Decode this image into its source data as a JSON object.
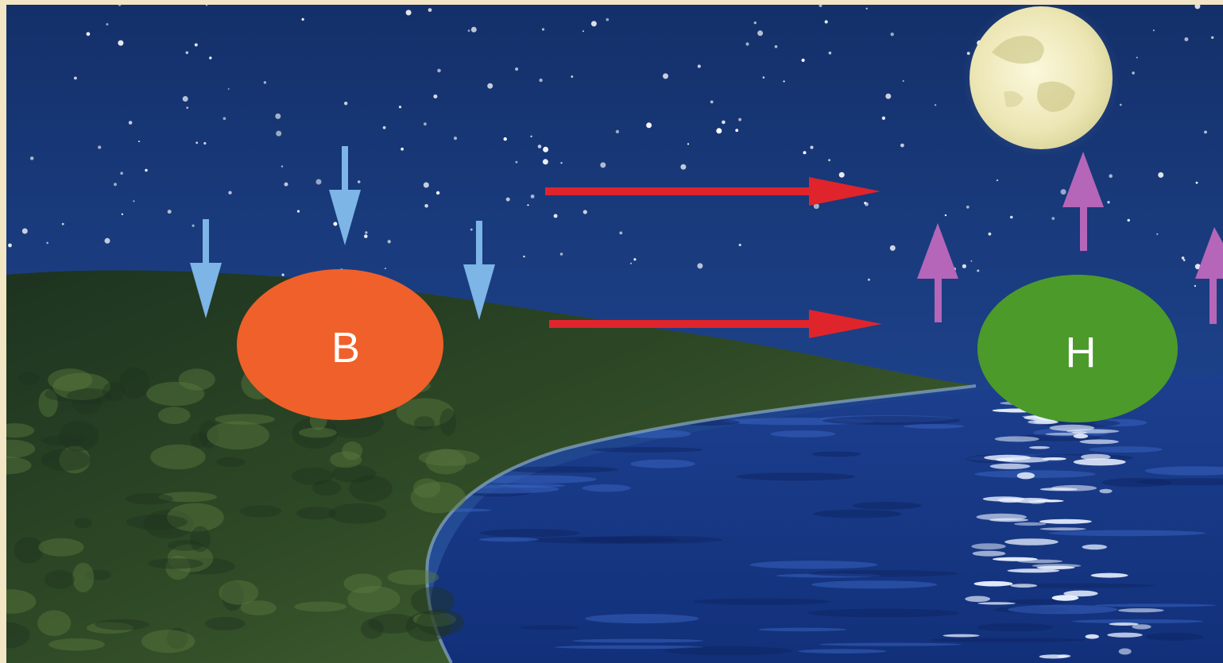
{
  "diagram": {
    "pressure_left": {
      "label": "B",
      "color": "#f0602a"
    },
    "pressure_right": {
      "label": "H",
      "color": "#4c9a2a"
    }
  },
  "colors": {
    "sky": "#1b3c78",
    "land": "#2c4a2a",
    "sea": "#1a3f9a",
    "moon": "#f4f1cf",
    "sinking_air_arrow": "#7cb5e6",
    "wind_arrow": "#e0242c",
    "rising_air_arrow": "#b566b8"
  },
  "icons": [
    "moon-icon"
  ]
}
